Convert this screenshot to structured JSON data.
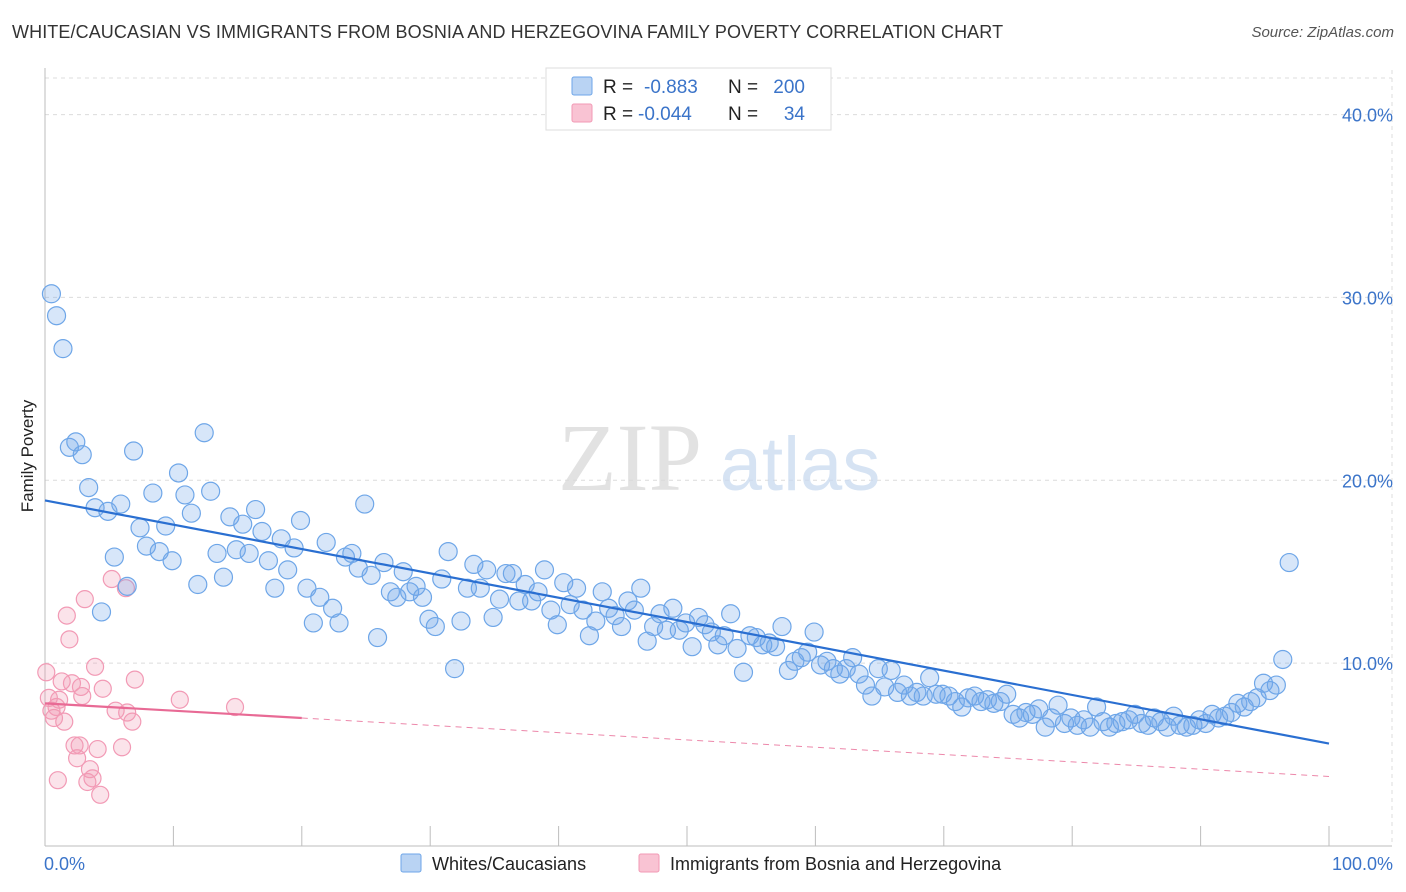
{
  "title": "WHITE/CAUCASIAN VS IMMIGRANTS FROM BOSNIA AND HERZEGOVINA FAMILY POVERTY CORRELATION CHART",
  "source": "Source: ZipAtlas.com",
  "watermark": {
    "zip": "ZIP",
    "atlas": "atlas"
  },
  "colors": {
    "blue": "#6ea6e8",
    "blue_line": "#2a6fd1",
    "pink": "#f29ab5",
    "pink_line": "#e86a95",
    "tick_label": "#3b74c9"
  },
  "legend_top": [
    {
      "r_label": "R =",
      "r_value": "-0.883",
      "n_label": "N =",
      "n_value": "200"
    },
    {
      "r_label": "R =",
      "r_value": "-0.044",
      "n_label": "N =",
      "n_value": "34"
    }
  ],
  "legend_bottom": [
    "Whites/Caucasians",
    "Immigrants from Bosnia and Herzegovina"
  ],
  "chart_data": {
    "type": "scatter",
    "title": "WHITE/CAUCASIAN VS IMMIGRANTS FROM BOSNIA AND HERZEGOVINA FAMILY POVERTY CORRELATION CHART",
    "ylabel": "Family Poverty",
    "xlabel": "",
    "xlim": [
      0,
      100
    ],
    "ylim": [
      0,
      42
    ],
    "x_tick_labels": [
      "0.0%",
      "100.0%"
    ],
    "y_ticks": [
      10,
      20,
      30,
      40
    ],
    "y_tick_labels": [
      "10.0%",
      "20.0%",
      "30.0%",
      "40.0%"
    ],
    "grid": true,
    "legend_placement": "top-center",
    "series": [
      {
        "name": "Whites/Caucasians",
        "r": -0.883,
        "n": 200,
        "trend": {
          "x": [
            0,
            100
          ],
          "y": [
            18.9,
            5.6
          ]
        },
        "points": [
          [
            0.5,
            30.2
          ],
          [
            0.9,
            29.0
          ],
          [
            1.4,
            27.2
          ],
          [
            1.9,
            21.8
          ],
          [
            2.4,
            22.1
          ],
          [
            2.9,
            21.4
          ],
          [
            3.4,
            19.6
          ],
          [
            3.9,
            18.5
          ],
          [
            4.4,
            12.8
          ],
          [
            4.9,
            18.3
          ],
          [
            5.4,
            15.8
          ],
          [
            5.9,
            18.7
          ],
          [
            6.4,
            14.2
          ],
          [
            6.9,
            21.6
          ],
          [
            7.4,
            17.4
          ],
          [
            7.9,
            16.4
          ],
          [
            8.4,
            19.3
          ],
          [
            8.9,
            16.1
          ],
          [
            9.4,
            17.5
          ],
          [
            9.9,
            15.6
          ],
          [
            10.4,
            20.4
          ],
          [
            10.9,
            19.2
          ],
          [
            11.4,
            18.2
          ],
          [
            11.9,
            14.3
          ],
          [
            12.4,
            22.6
          ],
          [
            12.9,
            19.4
          ],
          [
            13.4,
            16.0
          ],
          [
            13.9,
            14.7
          ],
          [
            14.4,
            18.0
          ],
          [
            14.9,
            16.2
          ],
          [
            15.4,
            17.6
          ],
          [
            15.9,
            16.0
          ],
          [
            16.4,
            18.4
          ],
          [
            16.9,
            17.2
          ],
          [
            17.4,
            15.6
          ],
          [
            17.9,
            14.1
          ],
          [
            18.4,
            16.8
          ],
          [
            18.9,
            15.1
          ],
          [
            19.4,
            16.3
          ],
          [
            19.9,
            17.8
          ],
          [
            20.4,
            14.1
          ],
          [
            20.9,
            12.2
          ],
          [
            21.4,
            13.6
          ],
          [
            21.9,
            16.6
          ],
          [
            22.4,
            13.0
          ],
          [
            22.9,
            12.2
          ],
          [
            23.4,
            15.8
          ],
          [
            23.9,
            16.0
          ],
          [
            24.4,
            15.2
          ],
          [
            24.9,
            18.7
          ],
          [
            25.4,
            14.8
          ],
          [
            25.9,
            11.4
          ],
          [
            26.4,
            15.5
          ],
          [
            26.9,
            13.9
          ],
          [
            27.4,
            13.6
          ],
          [
            27.9,
            15.0
          ],
          [
            28.4,
            13.9
          ],
          [
            28.9,
            14.2
          ],
          [
            29.4,
            13.6
          ],
          [
            29.9,
            12.4
          ],
          [
            30.4,
            12.0
          ],
          [
            30.9,
            14.6
          ],
          [
            31.4,
            16.1
          ],
          [
            31.9,
            9.7
          ],
          [
            32.4,
            12.3
          ],
          [
            32.9,
            14.1
          ],
          [
            33.4,
            15.4
          ],
          [
            33.9,
            14.1
          ],
          [
            34.4,
            15.1
          ],
          [
            34.9,
            12.5
          ],
          [
            35.4,
            13.5
          ],
          [
            35.9,
            14.9
          ],
          [
            36.4,
            14.9
          ],
          [
            36.9,
            13.4
          ],
          [
            37.4,
            14.3
          ],
          [
            37.9,
            13.4
          ],
          [
            38.4,
            13.9
          ],
          [
            38.9,
            15.1
          ],
          [
            39.4,
            12.9
          ],
          [
            39.9,
            12.1
          ],
          [
            40.4,
            14.4
          ],
          [
            40.9,
            13.2
          ],
          [
            41.4,
            14.1
          ],
          [
            41.9,
            12.9
          ],
          [
            42.4,
            11.5
          ],
          [
            42.9,
            12.3
          ],
          [
            43.4,
            13.9
          ],
          [
            43.9,
            13.0
          ],
          [
            44.4,
            12.6
          ],
          [
            44.9,
            12.0
          ],
          [
            45.4,
            13.4
          ],
          [
            45.9,
            12.9
          ],
          [
            46.4,
            14.1
          ],
          [
            46.9,
            11.2
          ],
          [
            47.4,
            12.0
          ],
          [
            47.9,
            12.7
          ],
          [
            48.4,
            11.8
          ],
          [
            48.9,
            13.0
          ],
          [
            49.4,
            11.8
          ],
          [
            49.9,
            12.2
          ],
          [
            50.4,
            10.9
          ],
          [
            50.9,
            12.5
          ],
          [
            51.4,
            12.1
          ],
          [
            51.9,
            11.7
          ],
          [
            52.4,
            11.0
          ],
          [
            52.9,
            11.5
          ],
          [
            53.4,
            12.7
          ],
          [
            53.9,
            10.8
          ],
          [
            54.4,
            9.5
          ],
          [
            54.9,
            11.5
          ],
          [
            55.4,
            11.4
          ],
          [
            55.9,
            11.0
          ],
          [
            56.4,
            11.1
          ],
          [
            56.9,
            10.9
          ],
          [
            57.4,
            12.0
          ],
          [
            57.9,
            9.6
          ],
          [
            58.4,
            10.1
          ],
          [
            58.9,
            10.3
          ],
          [
            59.4,
            10.6
          ],
          [
            59.9,
            11.7
          ],
          [
            60.4,
            9.9
          ],
          [
            60.9,
            10.1
          ],
          [
            61.4,
            9.7
          ],
          [
            61.9,
            9.4
          ],
          [
            62.4,
            9.7
          ],
          [
            62.9,
            10.3
          ],
          [
            63.4,
            9.4
          ],
          [
            63.9,
            8.8
          ],
          [
            64.4,
            8.2
          ],
          [
            64.9,
            9.7
          ],
          [
            65.4,
            8.7
          ],
          [
            65.9,
            9.6
          ],
          [
            66.4,
            8.4
          ],
          [
            66.9,
            8.8
          ],
          [
            67.4,
            8.2
          ],
          [
            67.9,
            8.4
          ],
          [
            68.4,
            8.2
          ],
          [
            68.9,
            9.2
          ],
          [
            69.4,
            8.3
          ],
          [
            69.9,
            8.3
          ],
          [
            70.4,
            8.2
          ],
          [
            70.9,
            7.9
          ],
          [
            71.4,
            7.6
          ],
          [
            71.9,
            8.1
          ],
          [
            72.4,
            8.2
          ],
          [
            72.9,
            7.9
          ],
          [
            73.4,
            8.0
          ],
          [
            73.9,
            7.8
          ],
          [
            74.4,
            7.9
          ],
          [
            74.9,
            8.3
          ],
          [
            75.4,
            7.2
          ],
          [
            75.9,
            7.0
          ],
          [
            76.4,
            7.3
          ],
          [
            76.9,
            7.2
          ],
          [
            77.4,
            7.5
          ],
          [
            77.9,
            6.5
          ],
          [
            78.4,
            7.0
          ],
          [
            78.9,
            7.7
          ],
          [
            79.4,
            6.7
          ],
          [
            79.9,
            7.0
          ],
          [
            80.4,
            6.6
          ],
          [
            80.9,
            6.9
          ],
          [
            81.4,
            6.5
          ],
          [
            81.9,
            7.6
          ],
          [
            82.4,
            6.8
          ],
          [
            82.9,
            6.5
          ],
          [
            83.4,
            6.7
          ],
          [
            83.9,
            6.8
          ],
          [
            84.4,
            6.9
          ],
          [
            84.9,
            7.2
          ],
          [
            85.4,
            6.7
          ],
          [
            85.9,
            6.6
          ],
          [
            86.4,
            7.0
          ],
          [
            86.9,
            6.8
          ],
          [
            87.4,
            6.5
          ],
          [
            87.9,
            7.1
          ],
          [
            88.4,
            6.6
          ],
          [
            88.9,
            6.5
          ],
          [
            89.4,
            6.6
          ],
          [
            89.9,
            6.9
          ],
          [
            90.4,
            6.7
          ],
          [
            90.9,
            7.2
          ],
          [
            91.4,
            7.0
          ],
          [
            91.9,
            7.1
          ],
          [
            92.4,
            7.3
          ],
          [
            92.9,
            7.8
          ],
          [
            93.4,
            7.6
          ],
          [
            93.9,
            7.9
          ],
          [
            94.4,
            8.1
          ],
          [
            94.9,
            8.9
          ],
          [
            95.4,
            8.5
          ],
          [
            95.9,
            8.8
          ],
          [
            96.4,
            10.2
          ],
          [
            96.9,
            15.5
          ]
        ]
      },
      {
        "name": "Immigrants from Bosnia and Herzegovina",
        "r": -0.044,
        "n": 34,
        "trend": {
          "x": [
            0,
            20
          ],
          "y": [
            7.8,
            7.0
          ]
        },
        "trend_extended": {
          "x": [
            20,
            100
          ],
          "y": [
            7.0,
            3.8
          ]
        },
        "points": [
          [
            0.1,
            9.5
          ],
          [
            0.3,
            8.1
          ],
          [
            0.5,
            7.4
          ],
          [
            0.7,
            7.0
          ],
          [
            0.9,
            7.6
          ],
          [
            1.1,
            8.0
          ],
          [
            1.3,
            9.0
          ],
          [
            1.5,
            6.8
          ],
          [
            1.7,
            12.6
          ],
          [
            1.9,
            11.3
          ],
          [
            2.1,
            8.9
          ],
          [
            2.3,
            5.5
          ],
          [
            2.5,
            4.8
          ],
          [
            2.7,
            5.5
          ],
          [
            2.9,
            8.2
          ],
          [
            3.1,
            13.5
          ],
          [
            3.3,
            3.5
          ],
          [
            3.5,
            4.2
          ],
          [
            3.7,
            3.7
          ],
          [
            3.9,
            9.8
          ],
          [
            4.1,
            5.3
          ],
          [
            4.3,
            2.8
          ],
          [
            4.5,
            8.6
          ],
          [
            5.2,
            14.6
          ],
          [
            5.5,
            7.4
          ],
          [
            6.0,
            5.4
          ],
          [
            6.4,
            7.3
          ],
          [
            6.8,
            6.8
          ],
          [
            6.3,
            14.1
          ],
          [
            7.0,
            9.1
          ],
          [
            10.5,
            8.0
          ],
          [
            14.8,
            7.6
          ],
          [
            2.8,
            8.7
          ],
          [
            1.0,
            3.6
          ]
        ]
      }
    ]
  }
}
